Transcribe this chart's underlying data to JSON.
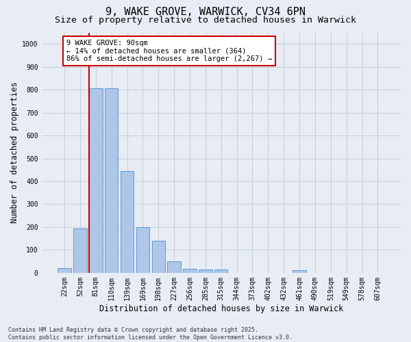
{
  "title": "9, WAKE GROVE, WARWICK, CV34 6PN",
  "subtitle": "Size of property relative to detached houses in Warwick",
  "xlabel": "Distribution of detached houses by size in Warwick",
  "ylabel": "Number of detached properties",
  "footer_line1": "Contains HM Land Registry data © Crown copyright and database right 2025.",
  "footer_line2": "Contains public sector information licensed under the Open Government Licence v3.0.",
  "categories": [
    "22sqm",
    "52sqm",
    "81sqm",
    "110sqm",
    "139sqm",
    "169sqm",
    "198sqm",
    "227sqm",
    "256sqm",
    "285sqm",
    "315sqm",
    "344sqm",
    "373sqm",
    "402sqm",
    "432sqm",
    "461sqm",
    "490sqm",
    "519sqm",
    "549sqm",
    "578sqm",
    "607sqm"
  ],
  "values": [
    20,
    195,
    805,
    805,
    445,
    200,
    140,
    50,
    18,
    13,
    13,
    0,
    0,
    0,
    0,
    10,
    0,
    0,
    0,
    0,
    0
  ],
  "bar_color": "#aec6e8",
  "bar_edge_color": "#5b9bd5",
  "vline_color": "#cc0000",
  "vline_bar_idx": 2,
  "annotation_line1": "9 WAKE GROVE: 90sqm",
  "annotation_line2": "← 14% of detached houses are smaller (364)",
  "annotation_line3": "86% of semi-detached houses are larger (2,267) →",
  "annotation_box_facecolor": "#ffffff",
  "annotation_box_edgecolor": "#cc0000",
  "ylim": [
    0,
    1050
  ],
  "yticks": [
    0,
    100,
    200,
    300,
    400,
    500,
    600,
    700,
    800,
    900,
    1000
  ],
  "grid_color": "#c8d0dc",
  "background_color": "#e8edf5",
  "title_fontsize": 11,
  "subtitle_fontsize": 9.5,
  "tick_fontsize": 7,
  "label_fontsize": 8.5,
  "footer_fontsize": 6,
  "annotation_fontsize": 7.5
}
